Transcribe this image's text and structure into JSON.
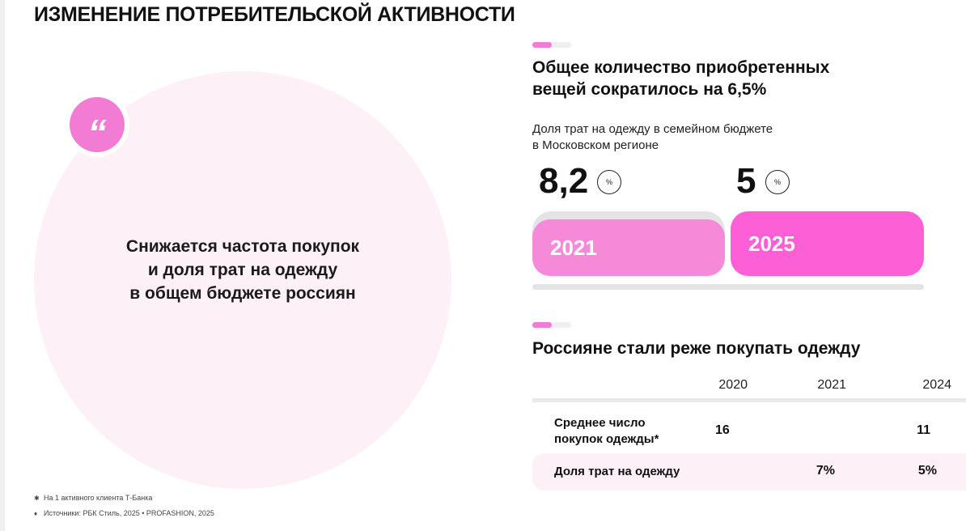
{
  "page": {
    "title": "ИЗМЕНЕНИЕ ПОТРЕБИТЕЛЬСКОЙ АКТИВНОСТИ"
  },
  "quote": {
    "mark": "“",
    "lines": [
      "Снижается частота покупок",
      "и доля трат на одежду",
      "в общем бюджете россиян"
    ]
  },
  "footnotes": [
    {
      "mark": "✱",
      "text": "На 1 активного клиента Т-Банка"
    },
    {
      "mark": "♦",
      "text": "Источники:  РБК Стиль, 2025  •  PROFASHION, 2025"
    }
  ],
  "section1": {
    "heading": [
      "Общее количество приобретенных",
      "вещей сократилось на 6,5%"
    ],
    "subheading": [
      "Доля трат на одежду в семейном бюджете",
      "в Московском регионе"
    ],
    "unit": "%",
    "items": [
      {
        "value": "8,2",
        "year": "2021",
        "color": "#f48ad8"
      },
      {
        "value": "5",
        "year": "2025",
        "color": "#fc5fd6"
      }
    ]
  },
  "section2": {
    "heading": "Россияне стали реже покупать одежду",
    "columns": [
      "2020",
      "2021",
      "2024"
    ],
    "rows": [
      {
        "label": [
          "Среднее число",
          "покупок одежды*"
        ],
        "cells": [
          "16",
          "",
          "11"
        ]
      },
      {
        "label": [
          "Доля трат на одежду"
        ],
        "cells": [
          "",
          "7%",
          "5%"
        ]
      }
    ]
  },
  "colors": {
    "accent_pink": "#f27cd3",
    "circle_bg": "#fdf0f6",
    "track_gray": "#e4e4e6"
  }
}
